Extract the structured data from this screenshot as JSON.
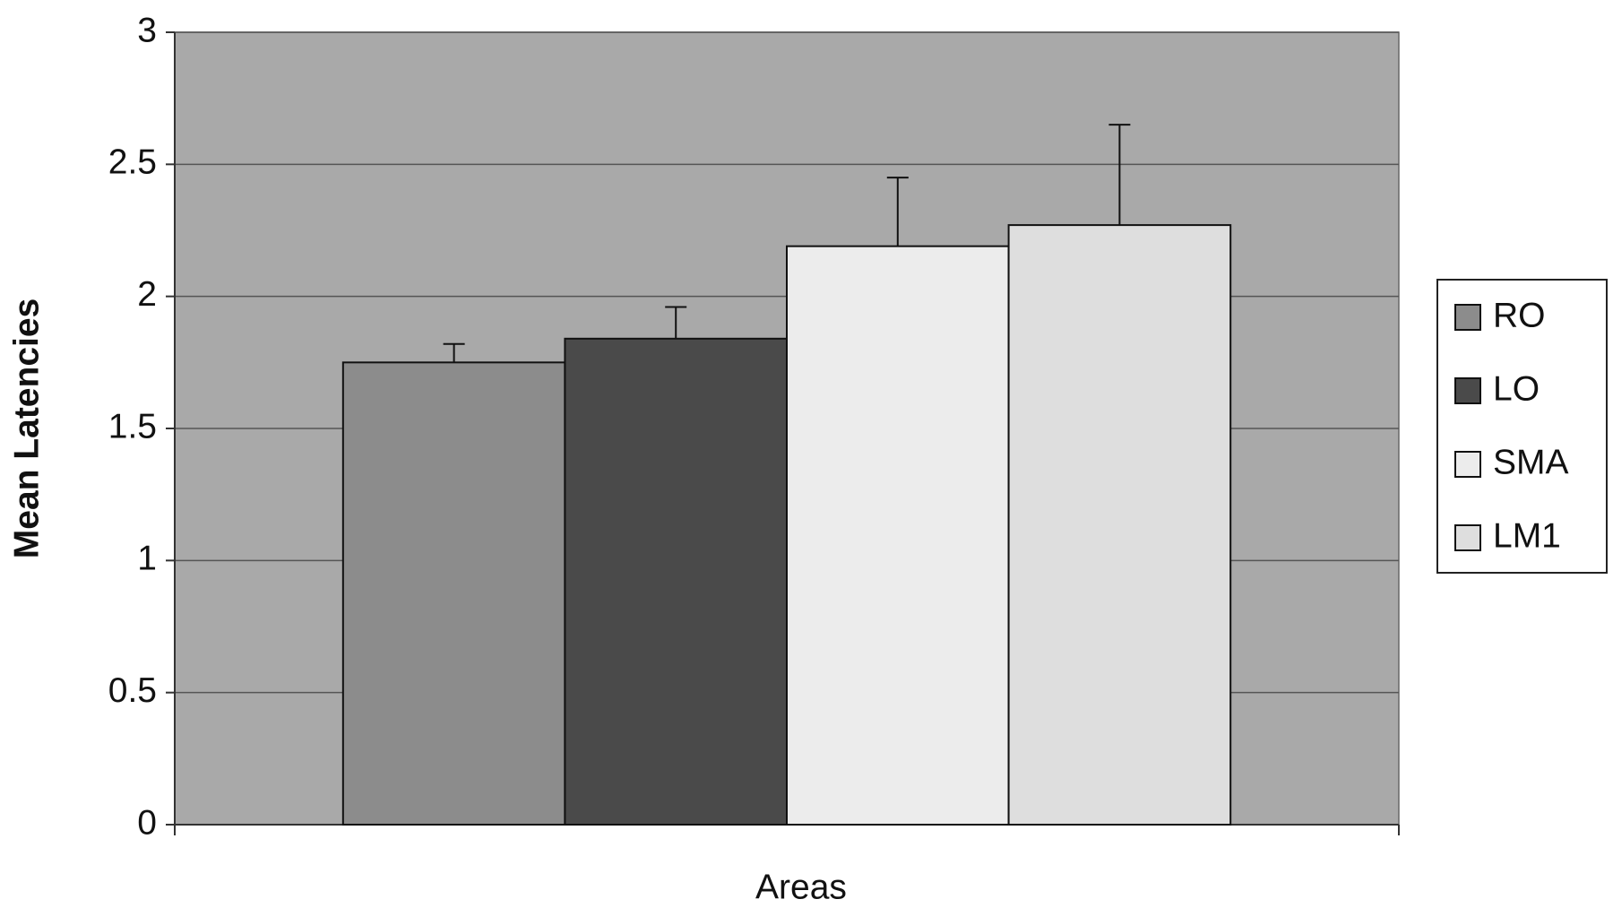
{
  "chart_data": {
    "type": "bar",
    "x_label": "Areas",
    "y_label": "Mean Latencies",
    "categories": [
      null
    ],
    "series": [
      {
        "name": "RO",
        "color": "#8c8c8c",
        "values": [
          1.75
        ],
        "errors": [
          0.07
        ]
      },
      {
        "name": "LO",
        "color": "#4a4a4a",
        "values": [
          1.84
        ],
        "errors": [
          0.12
        ]
      },
      {
        "name": "SMA",
        "color": "#ececec",
        "values": [
          2.19
        ],
        "errors": [
          0.26
        ]
      },
      {
        "name": "LM1",
        "color": "#dedede",
        "values": [
          2.27
        ],
        "errors": [
          0.38
        ]
      }
    ],
    "ylim": [
      0,
      3
    ],
    "yticks": [
      0,
      0.5,
      1,
      1.5,
      2,
      2.5,
      3
    ],
    "grid": true,
    "plot_background": "#a9a9a9",
    "legend": "right"
  }
}
